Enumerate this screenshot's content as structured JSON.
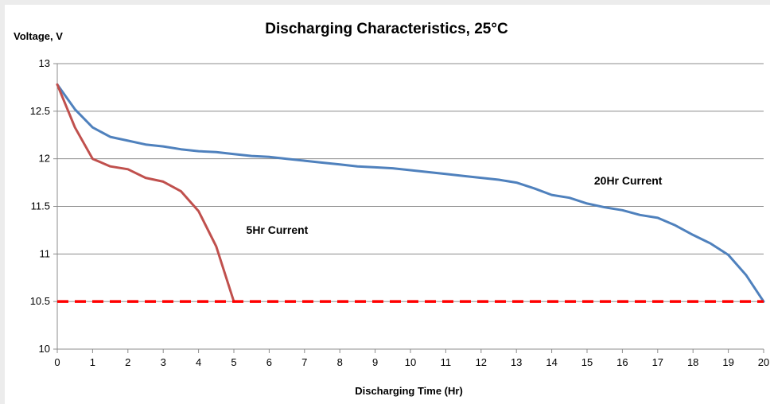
{
  "chart_data": {
    "type": "line",
    "title": "Discharging Characteristics, 25°C",
    "xlabel": "Discharging  Time (Hr)",
    "ylabel": "Voltage, V",
    "xlim": [
      0,
      20
    ],
    "ylim": [
      10,
      13
    ],
    "x_ticks": [
      0,
      1,
      2,
      3,
      4,
      5,
      6,
      7,
      8,
      9,
      10,
      11,
      12,
      13,
      14,
      15,
      16,
      17,
      18,
      19,
      20
    ],
    "y_ticks": [
      10,
      10.5,
      11,
      11.5,
      12,
      12.5,
      13
    ],
    "y_tick_labels": [
      "10",
      "10.5",
      "11",
      "11.5",
      "12",
      "12.5",
      "13"
    ],
    "grid": "horizontal",
    "series": [
      {
        "color": "#4f81bd",
        "label": "20Hr Current",
        "x": [
          0,
          0.5,
          1,
          1.5,
          2,
          2.5,
          3,
          3.5,
          4,
          4.5,
          5,
          5.5,
          6,
          6.5,
          7,
          7.5,
          8,
          8.5,
          9,
          9.5,
          10,
          10.5,
          11,
          11.5,
          12,
          12.5,
          13,
          13.5,
          14,
          14.5,
          15,
          15.5,
          16,
          16.5,
          17,
          17.5,
          18,
          18.5,
          19,
          19.5,
          20
        ],
        "y": [
          12.78,
          12.52,
          12.33,
          12.23,
          12.19,
          12.15,
          12.13,
          12.1,
          12.08,
          12.07,
          12.05,
          12.03,
          12.02,
          12.0,
          11.98,
          11.96,
          11.94,
          11.92,
          11.91,
          11.9,
          11.88,
          11.86,
          11.84,
          11.82,
          11.8,
          11.78,
          11.75,
          11.69,
          11.62,
          11.59,
          11.53,
          11.49,
          11.46,
          11.41,
          11.38,
          11.3,
          11.2,
          11.11,
          10.99,
          10.78,
          10.5
        ]
      },
      {
        "color": "#c0504d",
        "label": "5Hr Current",
        "x": [
          0,
          0.5,
          1,
          1.5,
          2,
          2.5,
          3,
          3.5,
          4,
          4.5,
          5
        ],
        "y": [
          12.78,
          12.33,
          12.0,
          11.92,
          11.89,
          11.8,
          11.76,
          11.66,
          11.45,
          11.08,
          10.5
        ]
      }
    ],
    "reference_line": {
      "y": 10.5,
      "color": "#ff0000",
      "style": "dashed"
    },
    "annotations": [
      {
        "text": "20Hr Current",
        "x": 15.2,
        "y": 11.73
      },
      {
        "text": "5Hr Current",
        "x": 5.35,
        "y": 11.21
      }
    ]
  }
}
